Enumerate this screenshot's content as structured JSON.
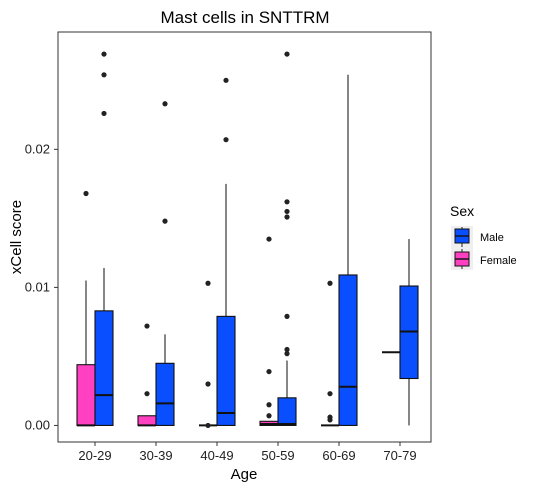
{
  "chart_data": {
    "type": "boxplot",
    "title": "Mast cells in SNTTRM",
    "xlabel": "Age",
    "ylabel": "xCell score",
    "categories": [
      "20-29",
      "30-39",
      "40-49",
      "50-59",
      "60-69",
      "70-79"
    ],
    "ylim": [
      -0.0012,
      0.0285
    ],
    "yticks": [
      0,
      0.01,
      0.02
    ],
    "ytick_labels": [
      "0.00",
      "0.01",
      "0.02"
    ],
    "grid": false,
    "legend": {
      "title": "Sex",
      "position": "right",
      "entries": [
        "Male",
        "Female"
      ]
    },
    "colors": {
      "Male": "#0a4fff",
      "Female": "#ff40c0"
    },
    "series": [
      {
        "name": "Female",
        "boxes": [
          {
            "category": "20-29",
            "min": 0,
            "q1": 0,
            "median": 0,
            "q3": 0.0044,
            "max": 0.0105,
            "outliers": [
              0.0168
            ]
          },
          {
            "category": "30-39",
            "min": 0,
            "q1": 0,
            "median": 0,
            "q3": 0.0007,
            "max": 0.0007,
            "outliers": [
              0.0072,
              0.0023
            ]
          },
          {
            "category": "40-49",
            "min": 0,
            "q1": 0,
            "median": 0,
            "q3": 0,
            "max": 0,
            "outliers": [
              0.0103,
              0.003,
              0.0
            ]
          },
          {
            "category": "50-59",
            "min": 0,
            "q1": 0,
            "median": 0.0001,
            "q3": 0.0003,
            "max": 0.0003,
            "outliers": [
              0.0135,
              0.0039,
              0.0015,
              0.0007
            ]
          },
          {
            "category": "60-69",
            "min": 0,
            "q1": 0,
            "median": 0,
            "q3": 0,
            "max": 0,
            "outliers": [
              0.0103,
              0.0023,
              0.0006,
              0.0004
            ]
          },
          {
            "category": "70-79",
            "min": 0.0053,
            "q1": 0.0053,
            "median": 0.0053,
            "q3": 0.0053,
            "max": 0.0053,
            "outliers": []
          }
        ]
      },
      {
        "name": "Male",
        "boxes": [
          {
            "category": "20-29",
            "min": 0,
            "q1": 0,
            "median": 0.0022,
            "q3": 0.0083,
            "max": 0.0114,
            "outliers": [
              0.0269,
              0.0254,
              0.0226
            ]
          },
          {
            "category": "30-39",
            "min": 0,
            "q1": 0,
            "median": 0.0016,
            "q3": 0.0045,
            "max": 0.0066,
            "outliers": [
              0.0233,
              0.0148
            ]
          },
          {
            "category": "40-49",
            "min": 0,
            "q1": 0,
            "median": 0.0009,
            "q3": 0.0079,
            "max": 0.0175,
            "outliers": [
              0.025,
              0.0207
            ]
          },
          {
            "category": "50-59",
            "min": 0,
            "q1": 0,
            "median": 0.0001,
            "q3": 0.002,
            "max": 0.0047,
            "outliers": [
              0.0269,
              0.0162,
              0.0155,
              0.0151,
              0.0079,
              0.0055,
              0.0052
            ]
          },
          {
            "category": "60-69",
            "min": 0,
            "q1": 0,
            "median": 0.0028,
            "q3": 0.0109,
            "max": 0.0254,
            "outliers": []
          },
          {
            "category": "70-79",
            "min": 0,
            "q1": 0.0034,
            "median": 0.0068,
            "q3": 0.0101,
            "max": 0.0135,
            "outliers": []
          }
        ]
      }
    ]
  }
}
